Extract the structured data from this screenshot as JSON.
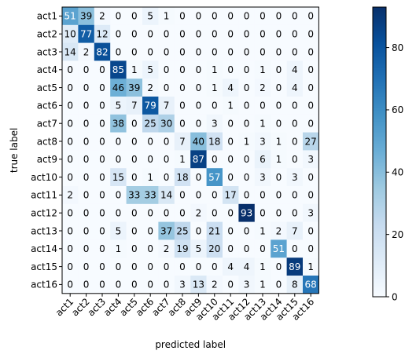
{
  "chart_data": {
    "type": "heatmap",
    "title": "",
    "xlabel": "predicted label",
    "ylabel": "true label",
    "row_labels": [
      "act1",
      "act2",
      "act3",
      "act4",
      "act5",
      "act6",
      "act7",
      "act8",
      "act9",
      "act10",
      "act11",
      "act12",
      "act13",
      "act14",
      "act15",
      "act16"
    ],
    "col_labels": [
      "act1",
      "act2",
      "act3",
      "act4",
      "act5",
      "act6",
      "act7",
      "act8",
      "act9",
      "act10",
      "act11",
      "act12",
      "act13",
      "act14",
      "act15",
      "act16"
    ],
    "values": [
      [
        51,
        39,
        2,
        0,
        0,
        5,
        1,
        0,
        0,
        0,
        0,
        0,
        0,
        0,
        0,
        0
      ],
      [
        10,
        77,
        12,
        0,
        0,
        0,
        0,
        0,
        0,
        0,
        0,
        0,
        0,
        0,
        0,
        0
      ],
      [
        14,
        2,
        82,
        0,
        0,
        0,
        0,
        0,
        0,
        0,
        0,
        0,
        0,
        0,
        0,
        0
      ],
      [
        0,
        0,
        0,
        85,
        1,
        5,
        0,
        0,
        0,
        1,
        0,
        0,
        1,
        0,
        4,
        0
      ],
      [
        0,
        0,
        0,
        46,
        39,
        2,
        0,
        0,
        0,
        1,
        4,
        0,
        2,
        0,
        4,
        0
      ],
      [
        0,
        0,
        0,
        5,
        7,
        79,
        7,
        0,
        0,
        0,
        1,
        0,
        0,
        0,
        0,
        0
      ],
      [
        0,
        0,
        0,
        38,
        0,
        25,
        30,
        0,
        0,
        3,
        0,
        0,
        1,
        0,
        0,
        0
      ],
      [
        0,
        0,
        0,
        0,
        0,
        0,
        0,
        7,
        40,
        18,
        0,
        1,
        3,
        1,
        0,
        27
      ],
      [
        0,
        0,
        0,
        0,
        0,
        0,
        0,
        1,
        87,
        0,
        0,
        0,
        6,
        1,
        0,
        3
      ],
      [
        0,
        0,
        0,
        15,
        0,
        1,
        0,
        18,
        0,
        57,
        0,
        0,
        3,
        0,
        3,
        0
      ],
      [
        2,
        0,
        0,
        0,
        33,
        33,
        14,
        0,
        0,
        0,
        17,
        0,
        0,
        0,
        0,
        0
      ],
      [
        0,
        0,
        0,
        0,
        0,
        0,
        0,
        0,
        2,
        0,
        0,
        93,
        0,
        0,
        0,
        3
      ],
      [
        0,
        0,
        0,
        5,
        0,
        0,
        37,
        25,
        0,
        21,
        0,
        0,
        1,
        2,
        7,
        0
      ],
      [
        0,
        0,
        0,
        1,
        0,
        0,
        2,
        19,
        5,
        20,
        0,
        0,
        0,
        51,
        0,
        0
      ],
      [
        0,
        0,
        0,
        0,
        0,
        0,
        0,
        0,
        0,
        0,
        4,
        4,
        1,
        0,
        89,
        1
      ],
      [
        0,
        0,
        0,
        0,
        0,
        0,
        0,
        3,
        13,
        2,
        0,
        3,
        1,
        0,
        8,
        68
      ]
    ],
    "colorbar": {
      "min": 0,
      "max": 93,
      "ticks": [
        0,
        20,
        40,
        60,
        80
      ],
      "colormap": "Blues"
    },
    "grid": false,
    "legend": "none"
  },
  "colors": {
    "cmap_stops": [
      "#f7fbff",
      "#deebf7",
      "#c6dbef",
      "#9ecae1",
      "#6baed6",
      "#4292c6",
      "#2171b5",
      "#08519c",
      "#08306b"
    ],
    "text_dark": "#000000",
    "text_light": "#ffffff"
  }
}
